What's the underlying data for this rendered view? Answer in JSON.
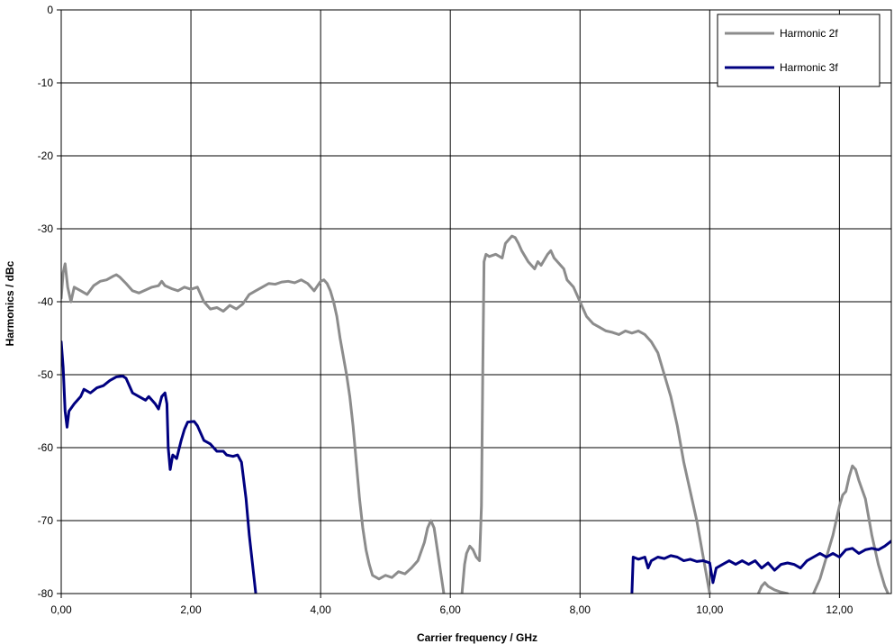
{
  "chart_data": {
    "type": "line",
    "title": "",
    "xlabel": "Carrier frequency / GHz",
    "ylabel": "Harmonics / dBc",
    "xlim": [
      0,
      12.8
    ],
    "ylim": [
      -80,
      0
    ],
    "x_ticks": [
      0,
      2,
      4,
      6,
      8,
      10,
      12
    ],
    "x_tick_labels": [
      "0,00",
      "2,00",
      "4,00",
      "6,00",
      "8,00",
      "10,00",
      "12,00"
    ],
    "y_ticks": [
      0,
      -10,
      -20,
      -30,
      -40,
      -50,
      -60,
      -70,
      -80
    ],
    "y_tick_labels": [
      "0",
      "-10",
      "-20",
      "-30",
      "-40",
      "-50",
      "-60",
      "-70",
      "-80"
    ],
    "grid": true,
    "legend_position": "top-right",
    "series": [
      {
        "name": "Harmonic 2f",
        "color": "#8c8c8c",
        "points": [
          [
            0.0,
            -39.5
          ],
          [
            0.03,
            -36.0
          ],
          [
            0.06,
            -34.8
          ],
          [
            0.1,
            -38.0
          ],
          [
            0.15,
            -40.0
          ],
          [
            0.2,
            -38.0
          ],
          [
            0.3,
            -38.5
          ],
          [
            0.4,
            -39.0
          ],
          [
            0.5,
            -37.8
          ],
          [
            0.6,
            -37.2
          ],
          [
            0.7,
            -37.0
          ],
          [
            0.8,
            -36.5
          ],
          [
            0.85,
            -36.3
          ],
          [
            0.9,
            -36.6
          ],
          [
            1.0,
            -37.5
          ],
          [
            1.1,
            -38.5
          ],
          [
            1.2,
            -38.8
          ],
          [
            1.3,
            -38.4
          ],
          [
            1.4,
            -38.0
          ],
          [
            1.5,
            -37.8
          ],
          [
            1.55,
            -37.2
          ],
          [
            1.6,
            -37.8
          ],
          [
            1.7,
            -38.2
          ],
          [
            1.8,
            -38.5
          ],
          [
            1.9,
            -38.0
          ],
          [
            2.0,
            -38.3
          ],
          [
            2.1,
            -38.0
          ],
          [
            2.15,
            -39.0
          ],
          [
            2.2,
            -40.0
          ],
          [
            2.3,
            -41.0
          ],
          [
            2.4,
            -40.8
          ],
          [
            2.5,
            -41.3
          ],
          [
            2.6,
            -40.5
          ],
          [
            2.7,
            -41.0
          ],
          [
            2.8,
            -40.3
          ],
          [
            2.9,
            -39.0
          ],
          [
            3.0,
            -38.5
          ],
          [
            3.1,
            -38.0
          ],
          [
            3.2,
            -37.5
          ],
          [
            3.3,
            -37.6
          ],
          [
            3.4,
            -37.3
          ],
          [
            3.5,
            -37.2
          ],
          [
            3.6,
            -37.4
          ],
          [
            3.7,
            -37.0
          ],
          [
            3.8,
            -37.5
          ],
          [
            3.9,
            -38.5
          ],
          [
            4.0,
            -37.2
          ],
          [
            4.05,
            -37.0
          ],
          [
            4.1,
            -37.5
          ],
          [
            4.15,
            -38.5
          ],
          [
            4.2,
            -40.0
          ],
          [
            4.25,
            -42.0
          ],
          [
            4.3,
            -45.0
          ],
          [
            4.35,
            -47.5
          ],
          [
            4.4,
            -50.0
          ],
          [
            4.45,
            -53.0
          ],
          [
            4.5,
            -57.0
          ],
          [
            4.55,
            -62.0
          ],
          [
            4.6,
            -67.0
          ],
          [
            4.65,
            -71.0
          ],
          [
            4.7,
            -74.0
          ],
          [
            4.75,
            -76.0
          ],
          [
            4.8,
            -77.5
          ],
          [
            4.9,
            -78.0
          ],
          [
            5.0,
            -77.5
          ],
          [
            5.1,
            -77.8
          ],
          [
            5.2,
            -77.0
          ],
          [
            5.3,
            -77.3
          ],
          [
            5.4,
            -76.5
          ],
          [
            5.5,
            -75.5
          ],
          [
            5.6,
            -73.0
          ],
          [
            5.65,
            -71.0
          ],
          [
            5.7,
            -70.0
          ],
          [
            5.75,
            -71.0
          ],
          [
            5.8,
            -74.0
          ],
          [
            5.85,
            -77.0
          ],
          [
            5.9,
            -80.0
          ]
        ]
      },
      {
        "name": "",
        "color": "#8c8c8c",
        "points": [
          [
            6.18,
            -80.0
          ],
          [
            6.22,
            -76.0
          ],
          [
            6.25,
            -74.5
          ],
          [
            6.3,
            -73.5
          ],
          [
            6.35,
            -74.0
          ],
          [
            6.4,
            -75.0
          ],
          [
            6.45,
            -75.5
          ],
          [
            6.48,
            -68.0
          ],
          [
            6.5,
            -50.0
          ],
          [
            6.52,
            -34.5
          ],
          [
            6.55,
            -33.5
          ],
          [
            6.6,
            -33.8
          ],
          [
            6.7,
            -33.5
          ],
          [
            6.8,
            -34.0
          ],
          [
            6.85,
            -32.0
          ],
          [
            6.9,
            -31.5
          ],
          [
            6.95,
            -31.0
          ],
          [
            7.0,
            -31.2
          ],
          [
            7.05,
            -32.0
          ],
          [
            7.1,
            -33.0
          ],
          [
            7.2,
            -34.5
          ],
          [
            7.3,
            -35.5
          ],
          [
            7.35,
            -34.5
          ],
          [
            7.4,
            -35.0
          ],
          [
            7.5,
            -33.5
          ],
          [
            7.55,
            -33.0
          ],
          [
            7.6,
            -34.0
          ],
          [
            7.7,
            -35.0
          ],
          [
            7.75,
            -35.5
          ],
          [
            7.8,
            -37.0
          ],
          [
            7.85,
            -37.5
          ],
          [
            7.9,
            -38.0
          ],
          [
            7.95,
            -39.0
          ],
          [
            8.0,
            -40.0
          ],
          [
            8.1,
            -42.0
          ],
          [
            8.2,
            -43.0
          ],
          [
            8.3,
            -43.5
          ],
          [
            8.4,
            -44.0
          ],
          [
            8.5,
            -44.2
          ],
          [
            8.6,
            -44.5
          ],
          [
            8.7,
            -44.0
          ],
          [
            8.8,
            -44.3
          ],
          [
            8.9,
            -44.0
          ],
          [
            9.0,
            -44.5
          ],
          [
            9.1,
            -45.5
          ],
          [
            9.2,
            -47.0
          ],
          [
            9.3,
            -50.0
          ],
          [
            9.4,
            -53.0
          ],
          [
            9.5,
            -57.0
          ],
          [
            9.6,
            -62.0
          ],
          [
            9.7,
            -66.0
          ],
          [
            9.8,
            -70.0
          ],
          [
            9.9,
            -75.0
          ],
          [
            10.0,
            -80.0
          ]
        ]
      },
      {
        "name": "",
        "color": "#8c8c8c",
        "points": [
          [
            10.75,
            -80.0
          ],
          [
            10.8,
            -79.0
          ],
          [
            10.85,
            -78.5
          ],
          [
            10.9,
            -79.0
          ],
          [
            11.0,
            -79.5
          ],
          [
            11.1,
            -79.8
          ],
          [
            11.2,
            -80.0
          ]
        ]
      },
      {
        "name": "",
        "color": "#8c8c8c",
        "points": [
          [
            11.6,
            -80.0
          ],
          [
            11.7,
            -78.0
          ],
          [
            11.8,
            -75.0
          ],
          [
            11.9,
            -72.0
          ],
          [
            12.0,
            -68.0
          ],
          [
            12.05,
            -66.5
          ],
          [
            12.1,
            -66.0
          ],
          [
            12.15,
            -64.0
          ],
          [
            12.2,
            -62.5
          ],
          [
            12.25,
            -63.0
          ],
          [
            12.3,
            -64.5
          ],
          [
            12.4,
            -67.0
          ],
          [
            12.5,
            -72.0
          ],
          [
            12.6,
            -76.0
          ],
          [
            12.7,
            -79.0
          ],
          [
            12.75,
            -80.0
          ]
        ]
      },
      {
        "name": "Harmonic 3f",
        "color": "#000080",
        "points": [
          [
            0.0,
            -45.5
          ],
          [
            0.03,
            -49.0
          ],
          [
            0.06,
            -55.0
          ],
          [
            0.09,
            -57.2
          ],
          [
            0.12,
            -55.0
          ],
          [
            0.2,
            -54.0
          ],
          [
            0.3,
            -53.0
          ],
          [
            0.35,
            -52.0
          ],
          [
            0.45,
            -52.5
          ],
          [
            0.55,
            -51.8
          ],
          [
            0.65,
            -51.5
          ],
          [
            0.75,
            -50.8
          ],
          [
            0.85,
            -50.3
          ],
          [
            0.95,
            -50.2
          ],
          [
            1.0,
            -50.5
          ],
          [
            1.05,
            -51.5
          ],
          [
            1.1,
            -52.5
          ],
          [
            1.2,
            -53.0
          ],
          [
            1.3,
            -53.5
          ],
          [
            1.35,
            -53.0
          ],
          [
            1.45,
            -54.0
          ],
          [
            1.5,
            -54.7
          ],
          [
            1.55,
            -53.0
          ],
          [
            1.6,
            -52.5
          ],
          [
            1.63,
            -54.0
          ],
          [
            1.65,
            -60.0
          ],
          [
            1.68,
            -63.0
          ],
          [
            1.72,
            -61.0
          ],
          [
            1.78,
            -61.5
          ],
          [
            1.85,
            -59.0
          ],
          [
            1.9,
            -57.5
          ],
          [
            1.95,
            -56.5
          ],
          [
            2.05,
            -56.4
          ],
          [
            2.1,
            -57.0
          ],
          [
            2.15,
            -58.0
          ],
          [
            2.2,
            -59.0
          ],
          [
            2.3,
            -59.5
          ],
          [
            2.4,
            -60.5
          ],
          [
            2.5,
            -60.5
          ],
          [
            2.55,
            -61.0
          ],
          [
            2.65,
            -61.2
          ],
          [
            2.72,
            -61.0
          ],
          [
            2.78,
            -62.0
          ],
          [
            2.85,
            -67.0
          ],
          [
            2.9,
            -72.0
          ],
          [
            2.95,
            -76.0
          ],
          [
            3.0,
            -80.0
          ]
        ]
      },
      {
        "name": "",
        "color": "#000080",
        "points": [
          [
            8.8,
            -80.0
          ],
          [
            8.82,
            -75.0
          ],
          [
            8.9,
            -75.3
          ],
          [
            9.0,
            -75.0
          ],
          [
            9.05,
            -76.5
          ],
          [
            9.1,
            -75.5
          ],
          [
            9.2,
            -75.0
          ],
          [
            9.3,
            -75.2
          ],
          [
            9.4,
            -74.8
          ],
          [
            9.5,
            -75.0
          ],
          [
            9.6,
            -75.5
          ],
          [
            9.7,
            -75.3
          ],
          [
            9.8,
            -75.6
          ],
          [
            9.9,
            -75.5
          ],
          [
            10.0,
            -75.8
          ],
          [
            10.05,
            -78.5
          ],
          [
            10.1,
            -76.5
          ],
          [
            10.2,
            -76.0
          ],
          [
            10.3,
            -75.5
          ],
          [
            10.4,
            -76.0
          ],
          [
            10.5,
            -75.5
          ],
          [
            10.6,
            -76.0
          ],
          [
            10.7,
            -75.5
          ],
          [
            10.8,
            -76.5
          ],
          [
            10.9,
            -75.8
          ],
          [
            11.0,
            -76.8
          ],
          [
            11.1,
            -76.0
          ],
          [
            11.2,
            -75.8
          ],
          [
            11.3,
            -76.0
          ],
          [
            11.4,
            -76.5
          ],
          [
            11.5,
            -75.5
          ],
          [
            11.6,
            -75.0
          ],
          [
            11.7,
            -74.5
          ],
          [
            11.8,
            -75.0
          ],
          [
            11.9,
            -74.5
          ],
          [
            12.0,
            -75.0
          ],
          [
            12.1,
            -74.0
          ],
          [
            12.2,
            -73.8
          ],
          [
            12.3,
            -74.5
          ],
          [
            12.4,
            -74.0
          ],
          [
            12.5,
            -73.8
          ],
          [
            12.6,
            -74.0
          ],
          [
            12.7,
            -73.5
          ],
          [
            12.8,
            -72.8
          ]
        ]
      }
    ]
  }
}
